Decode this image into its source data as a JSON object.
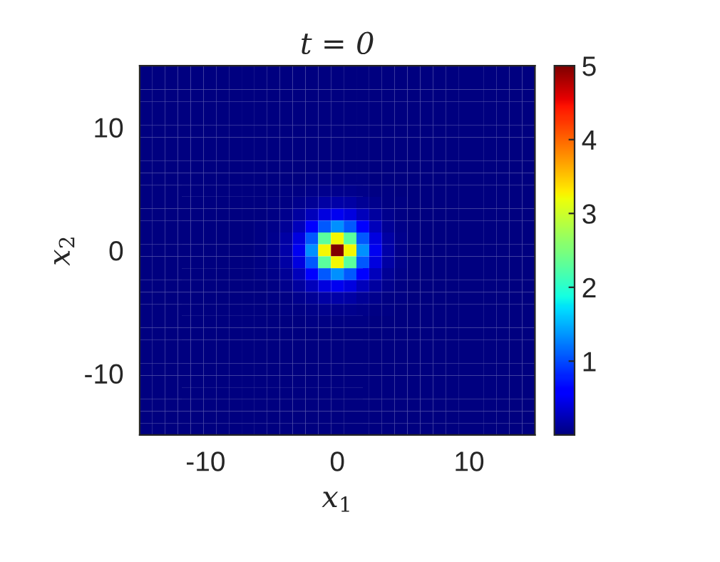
{
  "chart_data": {
    "type": "heatmap",
    "title": "t = 0",
    "xlabel": "x$_{1}$",
    "ylabel": "x$_{2}$",
    "xlim": [
      -15,
      15
    ],
    "ylim": [
      -15,
      15
    ],
    "xticks": [
      -10,
      0,
      10
    ],
    "yticks": [
      -10,
      0,
      10
    ],
    "clim": [
      0,
      5
    ],
    "cticks": [
      1,
      2,
      3,
      4,
      5
    ],
    "cells": [
      [
        0,
        0,
        0,
        0,
        0,
        0,
        0,
        0,
        0,
        0,
        0,
        0,
        0,
        0,
        0,
        0,
        0,
        0,
        0,
        0,
        0,
        0,
        0,
        0,
        0,
        0,
        0,
        0,
        0,
        0,
        0
      ],
      [
        0,
        0,
        0,
        0,
        0,
        0,
        0,
        0,
        0,
        0,
        0,
        0,
        0,
        0,
        0,
        0,
        0,
        0,
        0,
        0,
        0,
        0,
        0,
        0,
        0,
        0,
        0,
        0,
        0,
        0,
        0
      ],
      [
        0,
        0,
        0,
        0,
        0,
        0,
        0,
        0,
        0,
        0,
        0,
        0,
        0,
        0,
        0,
        0,
        0,
        0,
        0,
        0,
        0,
        0,
        0,
        0,
        0,
        0,
        0,
        0,
        0,
        0,
        0
      ],
      [
        0,
        0,
        0,
        0,
        0,
        0,
        0,
        0,
        0,
        0,
        0,
        0,
        0,
        0,
        0,
        0,
        0,
        0,
        0,
        0,
        0,
        0,
        0,
        0,
        0,
        0,
        0,
        0,
        0,
        0,
        0
      ],
      [
        0,
        0,
        0,
        0,
        0,
        0,
        0,
        0,
        0,
        0,
        0,
        0,
        0,
        0,
        0,
        0,
        0,
        0,
        0,
        0,
        0,
        0,
        0,
        0,
        0,
        0,
        0,
        0,
        0,
        0,
        0
      ],
      [
        0,
        0,
        0,
        0,
        0,
        0,
        0,
        0,
        0,
        0,
        0,
        0,
        0,
        0,
        0,
        0,
        0,
        0,
        0,
        0,
        0,
        0,
        0,
        0,
        0,
        0,
        0,
        0,
        0,
        0,
        0
      ],
      [
        0,
        0,
        0,
        0,
        0,
        0,
        0,
        0,
        0,
        0,
        0,
        0,
        0,
        0,
        0,
        0,
        0,
        0,
        0,
        0,
        0,
        0,
        0,
        0,
        0,
        0,
        0,
        0,
        0,
        0,
        0
      ],
      [
        0,
        0,
        0,
        0,
        0,
        0,
        0,
        0,
        0,
        0,
        0,
        0,
        0,
        0,
        0,
        0,
        0,
        0,
        0,
        0,
        0,
        0,
        0,
        0,
        0,
        0,
        0,
        0,
        0,
        0,
        0
      ],
      [
        0,
        0,
        0,
        0,
        0,
        0,
        0,
        0,
        0,
        0,
        0,
        0,
        0,
        0,
        0,
        0,
        0,
        0,
        0,
        0,
        0,
        0,
        0,
        0,
        0,
        0,
        0,
        0,
        0,
        0,
        0
      ],
      [
        0,
        0,
        0,
        0,
        0,
        0,
        0,
        0,
        0,
        0,
        0,
        0.01,
        0.01,
        0.02,
        0.02,
        0.02,
        0.02,
        0.02,
        0.01,
        0.01,
        0,
        0,
        0,
        0,
        0,
        0,
        0,
        0,
        0,
        0,
        0
      ],
      [
        0,
        0,
        0,
        0,
        0,
        0,
        0,
        0,
        0,
        0,
        0.01,
        0.02,
        0.03,
        0.05,
        0.06,
        0.07,
        0.06,
        0.05,
        0.03,
        0.02,
        0.01,
        0,
        0,
        0,
        0,
        0,
        0,
        0,
        0,
        0,
        0
      ],
      [
        0,
        0,
        0,
        0,
        0,
        0,
        0,
        0,
        0,
        0.01,
        0.02,
        0.03,
        0.07,
        0.11,
        0.16,
        0.18,
        0.16,
        0.11,
        0.07,
        0.03,
        0.02,
        0.01,
        0,
        0,
        0,
        0,
        0,
        0,
        0,
        0,
        0
      ],
      [
        0,
        0,
        0,
        0,
        0,
        0,
        0,
        0,
        0,
        0.01,
        0.03,
        0.07,
        0.14,
        0.27,
        0.42,
        0.5,
        0.42,
        0.27,
        0.14,
        0.07,
        0.03,
        0.01,
        0,
        0,
        0,
        0,
        0,
        0,
        0,
        0,
        0
      ],
      [
        0,
        0,
        0,
        0,
        0,
        0,
        0,
        0,
        0,
        0.02,
        0.05,
        0.11,
        0.27,
        0.59,
        1.06,
        1.33,
        1.06,
        0.59,
        0.27,
        0.11,
        0.05,
        0.02,
        0,
        0,
        0,
        0,
        0,
        0,
        0,
        0,
        0
      ],
      [
        0,
        0,
        0,
        0,
        0,
        0,
        0,
        0,
        0,
        0.02,
        0.06,
        0.16,
        0.42,
        1.06,
        2.3,
        3.24,
        2.3,
        1.06,
        0.42,
        0.16,
        0.06,
        0.02,
        0,
        0,
        0,
        0,
        0,
        0,
        0,
        0,
        0
      ],
      [
        0,
        0,
        0,
        0,
        0,
        0,
        0,
        0,
        0,
        0.02,
        0.07,
        0.18,
        0.5,
        1.33,
        3.24,
        5,
        3.24,
        1.33,
        0.5,
        0.18,
        0.07,
        0.02,
        0,
        0,
        0,
        0,
        0,
        0,
        0,
        0,
        0
      ],
      [
        0,
        0,
        0,
        0,
        0,
        0,
        0,
        0,
        0,
        0.02,
        0.06,
        0.16,
        0.42,
        1.06,
        2.3,
        3.24,
        2.3,
        1.06,
        0.42,
        0.16,
        0.06,
        0.02,
        0,
        0,
        0,
        0,
        0,
        0,
        0,
        0,
        0
      ],
      [
        0,
        0,
        0,
        0,
        0,
        0,
        0,
        0,
        0,
        0.02,
        0.05,
        0.11,
        0.27,
        0.59,
        1.06,
        1.33,
        1.06,
        0.59,
        0.27,
        0.11,
        0.05,
        0.02,
        0,
        0,
        0,
        0,
        0,
        0,
        0,
        0,
        0
      ],
      [
        0,
        0,
        0,
        0,
        0,
        0,
        0,
        0,
        0,
        0.01,
        0.03,
        0.07,
        0.14,
        0.27,
        0.42,
        0.5,
        0.42,
        0.27,
        0.14,
        0.07,
        0.03,
        0.01,
        0,
        0,
        0,
        0,
        0,
        0,
        0,
        0,
        0
      ],
      [
        0,
        0,
        0,
        0,
        0,
        0,
        0,
        0,
        0,
        0.01,
        0.02,
        0.03,
        0.07,
        0.11,
        0.16,
        0.18,
        0.16,
        0.11,
        0.07,
        0.03,
        0.02,
        0.01,
        0,
        0,
        0,
        0,
        0,
        0,
        0,
        0,
        0
      ],
      [
        0,
        0,
        0,
        0,
        0,
        0,
        0,
        0,
        0,
        0,
        0.01,
        0.02,
        0.03,
        0.05,
        0.06,
        0.07,
        0.06,
        0.05,
        0.03,
        0.02,
        0.01,
        0,
        0,
        0,
        0,
        0,
        0,
        0,
        0,
        0,
        0
      ],
      [
        0,
        0,
        0,
        0,
        0,
        0,
        0,
        0,
        0,
        0,
        0,
        0.01,
        0.01,
        0.02,
        0.02,
        0.02,
        0.02,
        0.02,
        0.01,
        0.01,
        0,
        0,
        0,
        0,
        0,
        0,
        0,
        0,
        0,
        0,
        0
      ],
      [
        0,
        0,
        0,
        0,
        0,
        0,
        0,
        0,
        0,
        0,
        0,
        0,
        0,
        0,
        0,
        0,
        0,
        0,
        0,
        0,
        0,
        0,
        0,
        0,
        0,
        0,
        0,
        0,
        0,
        0,
        0
      ],
      [
        0,
        0,
        0,
        0,
        0,
        0,
        0,
        0,
        0,
        0,
        0,
        0,
        0,
        0,
        0,
        0,
        0,
        0,
        0,
        0,
        0,
        0,
        0,
        0,
        0,
        0,
        0,
        0,
        0,
        0,
        0
      ],
      [
        0,
        0,
        0,
        0,
        0,
        0,
        0,
        0,
        0,
        0,
        0,
        0,
        0,
        0,
        0,
        0,
        0,
        0,
        0,
        0,
        0,
        0,
        0,
        0,
        0,
        0,
        0,
        0,
        0,
        0,
        0
      ],
      [
        0,
        0,
        0,
        0,
        0,
        0,
        0,
        0,
        0,
        0,
        0,
        0,
        0,
        0,
        0,
        0,
        0,
        0,
        0,
        0,
        0,
        0,
        0,
        0,
        0,
        0,
        0,
        0,
        0,
        0,
        0
      ],
      [
        0,
        0,
        0,
        0,
        0,
        0,
        0,
        0,
        0,
        0,
        0,
        0,
        0,
        0,
        0,
        0,
        0,
        0,
        0,
        0,
        0,
        0,
        0,
        0,
        0,
        0,
        0,
        0,
        0,
        0,
        0
      ],
      [
        0,
        0,
        0,
        0,
        0,
        0,
        0,
        0,
        0,
        0,
        0,
        0,
        0,
        0,
        0,
        0,
        0,
        0,
        0,
        0,
        0,
        0,
        0,
        0,
        0,
        0,
        0,
        0,
        0,
        0,
        0
      ],
      [
        0,
        0,
        0,
        0,
        0,
        0,
        0,
        0,
        0,
        0,
        0,
        0,
        0,
        0,
        0,
        0,
        0,
        0,
        0,
        0,
        0,
        0,
        0,
        0,
        0,
        0,
        0,
        0,
        0,
        0,
        0
      ],
      [
        0,
        0,
        0,
        0,
        0,
        0,
        0,
        0,
        0,
        0,
        0,
        0,
        0,
        0,
        0,
        0,
        0,
        0,
        0,
        0,
        0,
        0,
        0,
        0,
        0,
        0,
        0,
        0,
        0,
        0,
        0
      ],
      [
        0,
        0,
        0,
        0,
        0,
        0,
        0,
        0,
        0,
        0,
        0,
        0,
        0,
        0,
        0,
        0,
        0,
        0,
        0,
        0,
        0,
        0,
        0,
        0,
        0,
        0,
        0,
        0,
        0,
        0,
        0
      ]
    ]
  }
}
